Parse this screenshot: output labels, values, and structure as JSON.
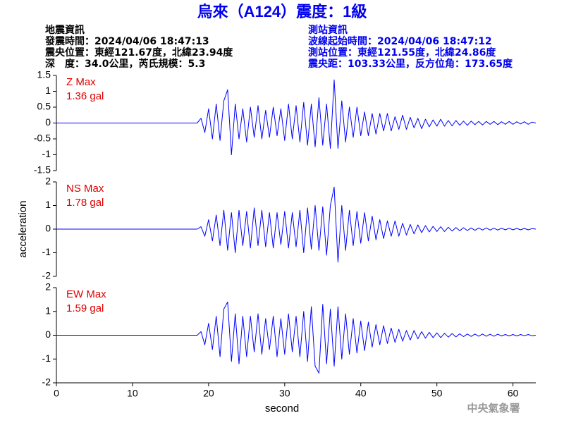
{
  "header": {
    "title": "烏來（A124）震度：1級",
    "left": [
      "地震資訊",
      "發震時間：2024/04/06 18:47:13",
      "震央位置：東經121.67度，北緯23.94度",
      "深　度：34.0公里，芮氏規模：5.3"
    ],
    "right": [
      "測站資訊",
      "波線起始時間：2024/04/06 18:47:12",
      "測站位置：東經121.55度，北緯24.86度",
      "震央距：103.33公里，反方位角：173.65度"
    ],
    "footer": "中央氣象署"
  },
  "chart_data": [
    {
      "type": "line",
      "annotations": [
        "Z Max",
        "1.36 gal"
      ],
      "xlim": [
        0,
        63
      ],
      "ylim": [
        -1.5,
        1.5
      ],
      "yticks": [
        1.5,
        1,
        0.5,
        0,
        -0.5,
        -1,
        -1.5
      ],
      "x": [
        0,
        18.5,
        19,
        19.5,
        20,
        20.5,
        21,
        21.5,
        22,
        22.5,
        23,
        23.5,
        24,
        24.5,
        25,
        25.5,
        26,
        26.5,
        27,
        27.5,
        28,
        28.5,
        29,
        29.5,
        30,
        30.5,
        31,
        31.5,
        32,
        32.5,
        33,
        33.5,
        34,
        34.5,
        35,
        35.5,
        36,
        36.5,
        37,
        37.5,
        38,
        38.5,
        39,
        39.5,
        40,
        40.5,
        41,
        41.5,
        42,
        42.5,
        43,
        43.5,
        44,
        44.5,
        45,
        45.5,
        46,
        46.5,
        47,
        47.5,
        48,
        48.5,
        49,
        49.5,
        50,
        50.5,
        51,
        51.5,
        52,
        52.5,
        53,
        53.5,
        54,
        54.5,
        55,
        55.5,
        56,
        56.5,
        57,
        57.5,
        58,
        58.5,
        59,
        59.5,
        60,
        60.5,
        61,
        61.5,
        62,
        62.5,
        63
      ],
      "series": [
        {
          "name": "Z",
          "color": "#0000ff",
          "values": [
            0,
            0,
            0.15,
            -0.3,
            0.45,
            -0.5,
            0.6,
            -0.55,
            0.7,
            1.05,
            -1.0,
            0.6,
            -0.5,
            0.45,
            -0.6,
            0.5,
            -0.45,
            0.55,
            -0.5,
            0.4,
            -0.45,
            0.5,
            -0.4,
            0.45,
            -0.55,
            0.6,
            -0.5,
            0.55,
            -0.6,
            0.65,
            -0.7,
            0.6,
            -0.75,
            0.8,
            -0.7,
            0.6,
            -0.8,
            1.36,
            -0.8,
            0.7,
            -0.6,
            0.5,
            -0.45,
            0.5,
            -0.4,
            0.35,
            -0.4,
            0.3,
            -0.35,
            0.3,
            -0.25,
            0.3,
            -0.25,
            0.2,
            -0.2,
            0.25,
            -0.2,
            0.18,
            -0.15,
            0.15,
            -0.18,
            0.12,
            -0.12,
            0.1,
            -0.1,
            0.12,
            -0.1,
            0.08,
            -0.09,
            0.08,
            -0.07,
            0.06,
            -0.07,
            0.06,
            -0.05,
            0.05,
            -0.06,
            0.05,
            -0.04,
            0.05,
            -0.05,
            0.04,
            -0.04,
            0.05,
            -0.04,
            0.04,
            -0.03,
            0.04,
            -0.04,
            0.03,
            0
          ]
        }
      ]
    },
    {
      "type": "line",
      "annotations": [
        "NS Max",
        "1.78 gal"
      ],
      "ylabel": "acceleration",
      "xlim": [
        0,
        63
      ],
      "ylim": [
        -2,
        2
      ],
      "yticks": [
        2,
        1,
        0,
        -1,
        -2
      ],
      "x": [
        0,
        18.5,
        19,
        19.5,
        20,
        20.5,
        21,
        21.5,
        22,
        22.5,
        23,
        23.5,
        24,
        24.5,
        25,
        25.5,
        26,
        26.5,
        27,
        27.5,
        28,
        28.5,
        29,
        29.5,
        30,
        30.5,
        31,
        31.5,
        32,
        32.5,
        33,
        33.5,
        34,
        34.5,
        35,
        35.5,
        36,
        36.5,
        37,
        37.5,
        38,
        38.5,
        39,
        39.5,
        40,
        40.5,
        41,
        41.5,
        42,
        42.5,
        43,
        43.5,
        44,
        44.5,
        45,
        45.5,
        46,
        46.5,
        47,
        47.5,
        48,
        48.5,
        49,
        49.5,
        50,
        50.5,
        51,
        51.5,
        52,
        52.5,
        53,
        53.5,
        54,
        54.5,
        55,
        55.5,
        56,
        56.5,
        57,
        57.5,
        58,
        58.5,
        59,
        59.5,
        60,
        60.5,
        61,
        61.5,
        62,
        62.5,
        63
      ],
      "series": [
        {
          "name": "NS",
          "color": "#0000ff",
          "values": [
            0,
            0,
            0.1,
            -0.3,
            0.4,
            -0.5,
            0.6,
            -0.7,
            0.8,
            -0.9,
            0.7,
            -1.0,
            0.8,
            -0.7,
            0.75,
            -0.8,
            0.9,
            -0.7,
            0.8,
            -0.75,
            0.7,
            -0.8,
            0.7,
            -0.65,
            0.75,
            -0.8,
            0.7,
            -0.75,
            0.8,
            -1.0,
            0.9,
            -0.85,
            1.0,
            -0.9,
            0.95,
            -1.1,
            1.0,
            1.78,
            -1.4,
            1.0,
            -0.9,
            0.8,
            -0.7,
            0.75,
            -0.6,
            0.7,
            -0.5,
            0.55,
            -0.45,
            0.4,
            -0.4,
            0.35,
            -0.3,
            0.35,
            -0.3,
            0.25,
            -0.25,
            0.2,
            -0.2,
            0.18,
            -0.15,
            0.15,
            -0.12,
            0.12,
            -0.1,
            0.1,
            -0.1,
            0.08,
            -0.08,
            0.07,
            -0.07,
            0.06,
            -0.06,
            0.05,
            -0.05,
            0.05,
            -0.04,
            0.05,
            -0.04,
            0.04,
            -0.04,
            0.04,
            -0.03,
            0.04,
            -0.03,
            0.03,
            -0.03,
            0.03,
            -0.03,
            0.02,
            0
          ]
        }
      ]
    },
    {
      "type": "line",
      "annotations": [
        "EW Max",
        "1.59 gal"
      ],
      "xlabel": "second",
      "xlim": [
        0,
        63
      ],
      "ylim": [
        -2,
        2
      ],
      "yticks": [
        2,
        1,
        0,
        -1,
        -2
      ],
      "xticks": [
        0,
        10,
        20,
        30,
        40,
        50,
        60
      ],
      "x": [
        0,
        18.5,
        19,
        19.5,
        20,
        20.5,
        21,
        21.5,
        22,
        22.5,
        23,
        23.5,
        24,
        24.5,
        25,
        25.5,
        26,
        26.5,
        27,
        27.5,
        28,
        28.5,
        29,
        29.5,
        30,
        30.5,
        31,
        31.5,
        32,
        32.5,
        33,
        33.5,
        34,
        34.5,
        35,
        35.5,
        36,
        36.5,
        37,
        37.5,
        38,
        38.5,
        39,
        39.5,
        40,
        40.5,
        41,
        41.5,
        42,
        42.5,
        43,
        43.5,
        44,
        44.5,
        45,
        45.5,
        46,
        46.5,
        47,
        47.5,
        48,
        48.5,
        49,
        49.5,
        50,
        50.5,
        51,
        51.5,
        52,
        52.5,
        53,
        53.5,
        54,
        54.5,
        55,
        55.5,
        56,
        56.5,
        57,
        57.5,
        58,
        58.5,
        59,
        59.5,
        60,
        60.5,
        61,
        61.5,
        62,
        62.5,
        63
      ],
      "series": [
        {
          "name": "EW",
          "color": "#0000ff",
          "values": [
            0,
            0,
            0.15,
            -0.4,
            0.5,
            -0.6,
            0.8,
            -0.9,
            1.1,
            1.4,
            -1.1,
            0.9,
            -1.2,
            0.8,
            -0.9,
            0.8,
            -0.7,
            0.9,
            -0.8,
            0.7,
            -0.6,
            0.8,
            -0.9,
            0.7,
            -0.8,
            0.9,
            -0.7,
            0.8,
            -0.9,
            1.0,
            -1.1,
            1.2,
            -1.3,
            -1.59,
            1.3,
            -1.2,
            1.1,
            -1.3,
            1.2,
            -1.0,
            0.9,
            -0.8,
            0.7,
            -0.75,
            0.6,
            -0.65,
            0.55,
            -0.5,
            0.45,
            -0.4,
            0.4,
            -0.35,
            0.3,
            -0.3,
            0.25,
            -0.25,
            0.2,
            -0.2,
            0.2,
            -0.15,
            0.15,
            -0.12,
            0.12,
            -0.1,
            0.1,
            -0.1,
            0.08,
            -0.08,
            0.07,
            -0.07,
            0.06,
            -0.06,
            0.05,
            -0.05,
            0.05,
            -0.04,
            0.05,
            -0.04,
            0.04,
            -0.04,
            0.04,
            -0.03,
            0.03,
            -0.03,
            0.03,
            -0.03,
            0.03,
            -0.02,
            0.03,
            -0.02,
            0
          ]
        }
      ]
    }
  ]
}
